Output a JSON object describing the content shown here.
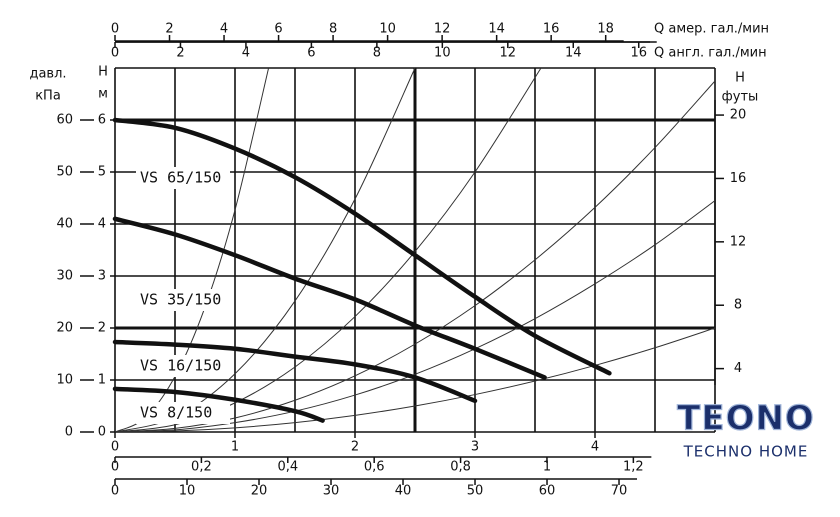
{
  "chart_data": {
    "type": "line",
    "xlim": [
      0,
      5
    ],
    "xticks": [
      0,
      1,
      2,
      3,
      4
    ],
    "ylim": [
      0,
      7
    ],
    "yticks": [
      0,
      1,
      2,
      3,
      4,
      5,
      6
    ],
    "ylabel": [
      "Н",
      "м"
    ],
    "xgrid": [
      0,
      0.5,
      1,
      1.5,
      2,
      2.5,
      3,
      3.5,
      4,
      4.5,
      5
    ],
    "ygrid": [
      0,
      1,
      2,
      3,
      4,
      5,
      6,
      7
    ],
    "xgrid_bold": [
      2.5
    ],
    "ygrid_bold": [
      2,
      6
    ],
    "kpa_axis": {
      "label": [
        "давл.",
        "кПа"
      ],
      "lim": [
        0,
        70
      ],
      "ticks": [
        0,
        10,
        20,
        30,
        40,
        50,
        60
      ]
    },
    "feet_axis": {
      "label": [
        "Н",
        "футы"
      ],
      "lim": [
        0,
        22.97
      ],
      "ticks": [
        4,
        8,
        12,
        16,
        20
      ]
    },
    "us_gpm_axis": {
      "label": "Q  амер. гал./мин",
      "lim": [
        0,
        22.01
      ],
      "ticks": [
        0,
        2,
        4,
        6,
        8,
        10,
        12,
        14,
        16,
        18
      ]
    },
    "imp_gpm_axis": {
      "label": "Q  англ. гал./мин",
      "lim": [
        0,
        18.33
      ],
      "ticks": [
        0,
        2,
        4,
        6,
        8,
        10,
        12,
        14,
        16
      ]
    },
    "ls_axis": {
      "lim": [
        0,
        1.389
      ],
      "ticks": [
        0,
        {
          "value": 0.2,
          "label": "0,2"
        },
        {
          "value": 0.4,
          "label": "0,4"
        },
        {
          "value": 0.6,
          "label": "0,6"
        },
        {
          "value": 0.8,
          "label": "0,8"
        },
        1,
        {
          "value": 1.2,
          "label": "1,2"
        }
      ]
    },
    "lmin_axis": {
      "lim": [
        0,
        83.33
      ],
      "ticks": [
        0,
        10,
        20,
        30,
        40,
        50,
        60,
        70
      ]
    },
    "series": [
      {
        "name": "VS 65/150",
        "color": "#111111",
        "x": [
          0,
          0.5,
          1,
          1.5,
          2,
          2.5,
          3,
          3.5,
          4.12
        ],
        "values": [
          6,
          5.85,
          5.45,
          4.9,
          4.2,
          3.4,
          2.6,
          1.85,
          1.13
        ]
      },
      {
        "name": "VS 35/150",
        "color": "#111111",
        "x": [
          0,
          0.5,
          1,
          1.5,
          2,
          2.5,
          3,
          3.58
        ],
        "values": [
          4.1,
          3.8,
          3.4,
          2.95,
          2.55,
          2.05,
          1.6,
          1.05
        ]
      },
      {
        "name": "VS 16/150",
        "color": "#111111",
        "x": [
          0,
          0.5,
          1,
          1.5,
          2,
          2.5,
          3
        ],
        "values": [
          1.73,
          1.68,
          1.6,
          1.45,
          1.3,
          1.05,
          0.6
        ]
      },
      {
        "name": "VS 8/150",
        "color": "#111111",
        "x": [
          0,
          0.5,
          1,
          1.5,
          1.73
        ],
        "values": [
          0.83,
          0.77,
          0.62,
          0.4,
          0.22
        ]
      }
    ],
    "system_color": "#333333",
    "system_curves": [
      {
        "x": [
          0,
          0.25,
          0.5,
          0.75,
          1,
          1.28
        ],
        "values": [
          0,
          0.27,
          1.07,
          2.4,
          4.27,
          7.0
        ]
      },
      {
        "x": [
          0,
          0.5,
          1,
          1.5,
          2,
          2.5
        ],
        "values": [
          0,
          0.28,
          1.12,
          2.52,
          4.48,
          7.0
        ]
      },
      {
        "x": [
          0,
          0.5,
          1,
          1.5,
          2,
          2.5,
          3,
          3.55
        ],
        "values": [
          0,
          0.14,
          0.56,
          1.25,
          2.22,
          3.47,
          5.0,
          7.0
        ]
      },
      {
        "x": [
          0,
          0.5,
          1,
          1.5,
          2,
          2.5,
          3,
          3.5,
          4,
          4.5,
          5
        ],
        "values": [
          0,
          0.07,
          0.27,
          0.61,
          1.08,
          1.69,
          2.43,
          3.31,
          4.32,
          5.47,
          6.75
        ]
      },
      {
        "x": [
          0,
          0.5,
          1,
          1.5,
          2,
          2.5,
          3,
          3.5,
          4,
          4.5,
          5
        ],
        "values": [
          0,
          0.04,
          0.18,
          0.4,
          0.71,
          1.11,
          1.6,
          2.18,
          2.85,
          3.6,
          4.45
        ]
      },
      {
        "x": [
          0,
          0.5,
          1,
          1.5,
          2,
          2.5,
          3,
          3.5,
          4,
          4.5,
          5
        ],
        "values": [
          0,
          0.02,
          0.08,
          0.18,
          0.32,
          0.5,
          0.72,
          0.98,
          1.28,
          1.62,
          2.0
        ]
      }
    ]
  },
  "logo": {
    "title": "TEONO",
    "subtitle": "TECHNO HOME"
  }
}
